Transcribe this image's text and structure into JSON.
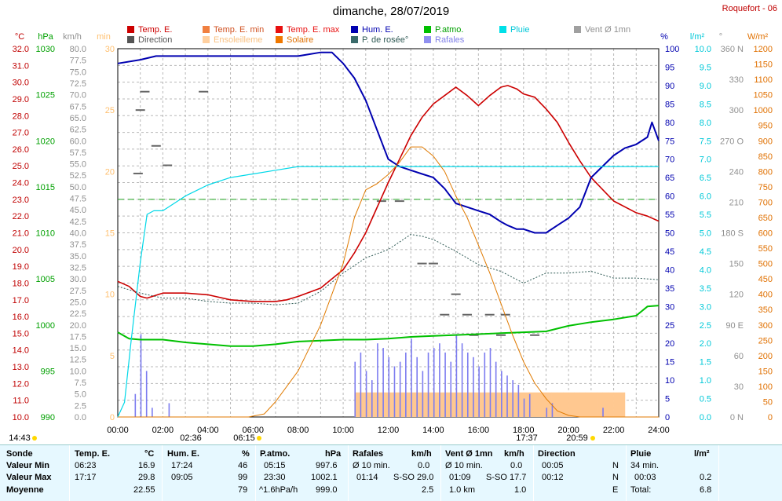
{
  "title": "dimanche, 28/07/2019",
  "station": "Roquefort - 06",
  "colors": {
    "temp": "#cc0000",
    "humidity": "#0000b0",
    "dewpoint": "#2f5a55",
    "gust": "#7c7cf0",
    "pressure": "#00c000",
    "rain": "#00d8e8",
    "solar": "#e07a00",
    "sun": "#ffc890",
    "wind": "#999999",
    "direction": "#666666",
    "threshold": "#21a521"
  },
  "legend": [
    {
      "label": "Temp. E.",
      "color": "#cc0000"
    },
    {
      "label": "Temp. E. min",
      "color": "#f08040"
    },
    {
      "label": "Temp. E. max",
      "color": "#e81010"
    },
    {
      "label": "Hum. E.",
      "color": "#0000b0"
    },
    {
      "label": "P.atmo.",
      "color": "#00c000"
    },
    {
      "label": "Pluie",
      "color": "#00e0e8"
    },
    {
      "label": "Vent Ø 1mn",
      "color": "#a0a0a0"
    },
    {
      "label": "Direction",
      "color": "#555555"
    },
    {
      "label": "Ensoleilleme",
      "color": "#ffd0a0"
    },
    {
      "label": "Solaire",
      "color": "#f07800"
    },
    {
      "label": "P. de rosée°",
      "color": "#3b6b6b"
    },
    {
      "label": "Rafales",
      "color": "#9090f0"
    }
  ],
  "axis_units": {
    "temp": "°C",
    "pressure": "hPa",
    "wind": "km/h",
    "sun": "min",
    "humidity": "%",
    "rain": "l/m²",
    "direction": "°",
    "solar": "W/m²"
  },
  "axes": {
    "temp": [
      "32.0",
      "31.0",
      "30.0",
      "29.0",
      "28.0",
      "27.0",
      "26.0",
      "25.0",
      "24.0",
      "23.0",
      "22.0",
      "21.0",
      "20.0",
      "19.0",
      "18.0",
      "17.0",
      "16.0",
      "15.0",
      "14.0",
      "13.0",
      "12.0",
      "11.0",
      "10.0"
    ],
    "pressure": [
      "1030",
      "1025",
      "1020",
      "1015",
      "1010",
      "1005",
      "1000",
      "995",
      "990"
    ],
    "wind": [
      "80.0",
      "77.5",
      "75.0",
      "72.5",
      "70.0",
      "67.5",
      "65.0",
      "62.5",
      "60.0",
      "57.5",
      "55.0",
      "52.5",
      "50.0",
      "47.5",
      "45.0",
      "42.5",
      "40.0",
      "37.5",
      "35.0",
      "32.5",
      "30.0",
      "27.5",
      "25.0",
      "22.5",
      "20.0",
      "17.5",
      "15.0",
      "12.5",
      "10.0",
      "7.5",
      "5.0",
      "2.5",
      "0.0"
    ],
    "sun": [
      "30",
      "25",
      "20",
      "15",
      "10",
      "5",
      "0"
    ],
    "humidity": [
      "100",
      "95",
      "90",
      "85",
      "80",
      "75",
      "70",
      "65",
      "60",
      "55",
      "50",
      "45",
      "40",
      "35",
      "30",
      "25",
      "20",
      "15",
      "10",
      "5",
      "0"
    ],
    "rain": [
      "10.0",
      "9.5",
      "9.0",
      "8.5",
      "8.0",
      "7.5",
      "7.0",
      "6.5",
      "6.0",
      "5.5",
      "5.0",
      "4.5",
      "4.0",
      "3.5",
      "3.0",
      "2.5",
      "2.0",
      "1.5",
      "1.0",
      "0.5",
      "0.0"
    ],
    "direction": [
      "360 N",
      "330",
      "300",
      "270 O",
      "240",
      "210",
      "180 S",
      "150",
      "120",
      "90 E",
      "60",
      "30",
      "0 N"
    ],
    "solar": [
      "1200",
      "1150",
      "1100",
      "1050",
      "1000",
      "950",
      "900",
      "850",
      "800",
      "750",
      "700",
      "650",
      "600",
      "550",
      "500",
      "450",
      "400",
      "350",
      "300",
      "250",
      "200",
      "150",
      "100",
      "50",
      "0"
    ]
  },
  "x_ticks": [
    "00:00",
    "02:00",
    "04:00",
    "06:00",
    "08:00",
    "10:00",
    "12:00",
    "14:00",
    "16:00",
    "18:00",
    "20:00",
    "22:00",
    "24:00"
  ],
  "time_marks": {
    "now": "14:43",
    "moonrise": "02:36",
    "sunrise": "06:15",
    "transit": "17:37",
    "sunset": "20:59"
  },
  "chart_data": {
    "type": "line",
    "title": "dimanche, 28/07/2019",
    "x_unit": "hour",
    "xlim": [
      0,
      24
    ],
    "series": [
      {
        "name": "Temp. E.",
        "unit": "°C",
        "ylim": [
          10,
          32
        ],
        "x": [
          0,
          0.5,
          1,
          1.3,
          2,
          3,
          4,
          5,
          6,
          7,
          7.5,
          8,
          9,
          10,
          10.5,
          11,
          11.5,
          12,
          12.5,
          13,
          13.5,
          14,
          14.5,
          15,
          15.5,
          16,
          16.5,
          17,
          17.3,
          17.7,
          18,
          18.5,
          19,
          19.5,
          20,
          20.5,
          21,
          21.5,
          22,
          23,
          23.5,
          24
        ],
        "y": [
          18.1,
          17.8,
          17.2,
          17.1,
          17.4,
          17.4,
          17.3,
          17.0,
          16.9,
          16.9,
          17.0,
          17.2,
          17.7,
          18.8,
          19.8,
          21.0,
          22.5,
          24.0,
          25.4,
          26.8,
          27.9,
          28.7,
          29.2,
          29.7,
          29.2,
          28.6,
          29.2,
          29.7,
          29.8,
          29.6,
          29.3,
          29.1,
          28.4,
          27.6,
          26.4,
          25.3,
          24.3,
          23.6,
          22.9,
          22.2,
          22.0,
          21.7
        ]
      },
      {
        "name": "Hum. E.",
        "unit": "%",
        "ylim": [
          0,
          100
        ],
        "x": [
          0,
          1,
          1.7,
          2,
          3,
          4,
          5,
          6,
          7,
          8,
          9,
          9.5,
          10,
          10.5,
          11,
          11.5,
          12,
          12.5,
          13,
          13.5,
          14,
          14.5,
          15,
          15.5,
          16,
          16.5,
          17,
          17.3,
          17.7,
          18,
          18.5,
          19,
          19.5,
          20,
          20.5,
          21,
          22,
          22.5,
          23,
          23.5,
          23.7,
          24
        ],
        "y": [
          96,
          97,
          98,
          98,
          98,
          98,
          98,
          98,
          98,
          98,
          99,
          99,
          96,
          92,
          86,
          78,
          70,
          68,
          67,
          66,
          65,
          62,
          58,
          57,
          56,
          55,
          53,
          52,
          51,
          51,
          50,
          50,
          52,
          54,
          57,
          65,
          71,
          73,
          74,
          76,
          80,
          75
        ]
      },
      {
        "name": "P. de rosée°",
        "unit": "°C",
        "ylim": [
          10,
          32
        ],
        "x": [
          0,
          1,
          2,
          3,
          4,
          5,
          6,
          7,
          8,
          9,
          10,
          11,
          12,
          13,
          13.5,
          14,
          15,
          16,
          17,
          18,
          19,
          20,
          21,
          22,
          23,
          24
        ],
        "y": [
          17.8,
          17.4,
          17.1,
          17.1,
          16.9,
          16.8,
          16.8,
          16.7,
          16.8,
          17.5,
          18.6,
          19.5,
          20.0,
          20.9,
          20.8,
          20.6,
          19.9,
          19.1,
          18.7,
          18.0,
          18.6,
          18.6,
          18.7,
          18.3,
          18.3,
          18.2
        ]
      },
      {
        "name": "P.atmo.",
        "unit": "hPa",
        "ylim": [
          990,
          1030
        ],
        "x": [
          0,
          0.5,
          1,
          2,
          3,
          4,
          5,
          6,
          7,
          8,
          9,
          10,
          11,
          12,
          13,
          14,
          15,
          16,
          17,
          18,
          19,
          20,
          21,
          22,
          23,
          23.5,
          24
        ],
        "y": [
          999.2,
          998.5,
          998.4,
          998.4,
          998.1,
          997.9,
          997.7,
          997.7,
          997.9,
          998.2,
          998.3,
          998.4,
          998.4,
          998.5,
          998.7,
          998.8,
          998.9,
          999.0,
          999.1,
          999.2,
          999.3,
          999.9,
          1000.3,
          1000.6,
          1001.0,
          1002.0,
          1002.1
        ]
      },
      {
        "name": "Pluie",
        "unit": "l/m²",
        "ylim": [
          0,
          10
        ],
        "x": [
          0,
          0.3,
          0.6,
          1,
          1.3,
          1.6,
          2,
          2.5,
          3,
          4,
          5,
          6,
          7,
          8,
          24
        ],
        "y": [
          0,
          0.4,
          2.1,
          4.2,
          5.5,
          5.6,
          5.6,
          5.8,
          6.0,
          6.3,
          6.5,
          6.6,
          6.7,
          6.8,
          6.8
        ]
      },
      {
        "name": "Solaire",
        "unit": "W/m²",
        "ylim": [
          0,
          1200
        ],
        "x": [
          0,
          5.8,
          6.5,
          7,
          8,
          9,
          10,
          10.5,
          11,
          11.5,
          12,
          12.5,
          13,
          13.5,
          14,
          14.5,
          15,
          15.5,
          16,
          16.5,
          17,
          17.5,
          18,
          18.5,
          19,
          19.5,
          20,
          20.5,
          21,
          24
        ],
        "y": [
          0,
          0,
          10,
          50,
          150,
          300,
          500,
          650,
          740,
          760,
          790,
          830,
          880,
          880,
          850,
          800,
          720,
          650,
          560,
          470,
          370,
          270,
          180,
          110,
          60,
          20,
          5,
          0,
          0,
          0
        ]
      }
    ],
    "gusts_kmh": [
      0,
      0,
      0,
      5,
      18,
      10,
      2,
      0,
      0,
      3,
      0,
      0,
      0,
      0,
      0,
      0,
      0,
      0,
      0,
      0,
      0,
      0,
      0,
      0,
      0,
      0,
      0,
      0,
      0,
      0,
      0,
      0,
      0,
      0,
      0,
      0,
      0,
      0,
      0,
      0,
      0,
      0,
      12,
      14,
      10,
      8,
      16,
      15,
      13,
      11,
      12,
      14,
      17,
      13,
      10,
      14,
      15,
      16,
      14,
      12,
      18,
      16,
      14,
      13,
      11,
      14,
      15,
      12,
      10,
      9,
      8,
      7,
      4,
      5,
      0,
      0,
      2,
      3,
      0,
      0,
      0,
      0,
      0,
      0,
      0,
      0,
      2,
      0,
      0,
      0,
      0,
      0,
      0,
      0,
      0,
      0
    ],
    "sunshine_minutes": [
      0,
      0,
      0,
      0,
      0,
      0,
      0,
      0,
      0,
      0,
      0,
      0,
      0,
      0,
      0,
      0,
      0,
      0,
      0,
      0,
      0,
      0,
      0,
      0,
      0,
      0,
      0,
      0,
      0,
      0,
      0,
      0,
      0,
      0,
      0,
      0,
      0,
      0,
      0,
      0,
      0,
      0,
      2,
      2,
      2,
      2,
      2,
      2,
      2,
      2,
      2,
      2,
      2,
      2,
      2,
      2,
      2,
      2,
      2,
      2,
      2,
      2,
      2,
      2,
      2,
      2,
      2,
      2,
      2,
      2,
      2,
      2,
      2,
      2,
      2,
      2,
      2,
      2,
      2,
      2,
      2,
      2,
      2,
      2,
      2,
      2,
      2,
      2,
      2,
      2,
      0,
      0,
      0,
      0,
      0,
      0
    ],
    "direction_deg": [
      {
        "x": 1.2,
        "y": 318
      },
      {
        "x": 1.0,
        "y": 300
      },
      {
        "x": 1.7,
        "y": 265
      },
      {
        "x": 2.2,
        "y": 246
      },
      {
        "x": 3.8,
        "y": 318
      },
      {
        "x": 0.9,
        "y": 238
      },
      {
        "x": 11.7,
        "y": 211
      },
      {
        "x": 12.5,
        "y": 211
      },
      {
        "x": 13.5,
        "y": 150
      },
      {
        "x": 14.0,
        "y": 150
      },
      {
        "x": 14.5,
        "y": 100
      },
      {
        "x": 15.5,
        "y": 100
      },
      {
        "x": 16.5,
        "y": 100
      },
      {
        "x": 15.8,
        "y": 80
      },
      {
        "x": 17.0,
        "y": 80
      },
      {
        "x": 18.5,
        "y": 80
      },
      {
        "x": 17.2,
        "y": 100
      },
      {
        "x": 15.0,
        "y": 120
      }
    ],
    "threshold_line": {
      "unit": "°C",
      "value": 23
    }
  },
  "stats": {
    "headers": {
      "sonde": "Sonde",
      "temp": "Temp. E.",
      "temp_unit": "°C",
      "hum": "Hum. E.",
      "hum_unit": "%",
      "press": "P.atmo.",
      "press_unit": "hPa",
      "gust": "Rafales",
      "gust_unit": "km/h",
      "wind": "Vent Ø 1mn",
      "wind_unit": "km/h",
      "dir": "Direction",
      "rain": "Pluie",
      "rain_unit": "l/m²"
    },
    "row_labels": [
      "Valeur Min",
      "Valeur Max",
      "Moyenne"
    ],
    "temp": [
      [
        "06:23",
        "16.9"
      ],
      [
        "17:17",
        "29.8"
      ],
      [
        "",
        "22.55"
      ]
    ],
    "hum": [
      [
        "17:24",
        "46"
      ],
      [
        "09:05",
        "99"
      ],
      [
        "",
        "79"
      ]
    ],
    "press": [
      [
        "05:15",
        "997.6"
      ],
      [
        "23:30",
        "1002.1"
      ],
      [
        "^1.6hPa/h",
        "999.0"
      ]
    ],
    "gust": [
      [
        "Ø 10 min.",
        "0.0"
      ],
      [
        "01:14",
        "S-SO 29.0"
      ],
      [
        "",
        "2.5"
      ]
    ],
    "wind": [
      [
        "Ø 10 min.",
        "0.0"
      ],
      [
        "01:09",
        "S-SO 17.7"
      ],
      [
        "1.0 km",
        "1.0"
      ]
    ],
    "dir": [
      [
        "00:05",
        "N"
      ],
      [
        "00:12",
        "N"
      ],
      [
        "",
        "E"
      ]
    ],
    "rain": [
      [
        "34 min.",
        ""
      ],
      [
        "00:03",
        "0.2"
      ],
      [
        "Total:",
        "6.8"
      ]
    ]
  }
}
